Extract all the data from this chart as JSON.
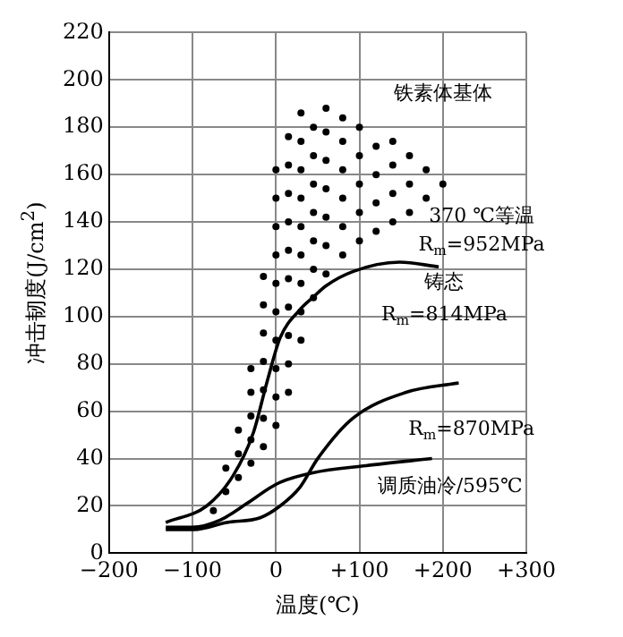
{
  "chart_data": {
    "type": "line",
    "xlabel": "温度(℃)",
    "ylabel": "冲击韧度(J/cm$^{2}$)",
    "xlim": [
      -200,
      300
    ],
    "ylim": [
      0,
      220
    ],
    "xticks": [
      {
        "value": -200,
        "label": "−200"
      },
      {
        "value": -100,
        "label": "−100"
      },
      0,
      {
        "value": 100,
        "label": "+100"
      },
      {
        "value": 200,
        "label": "+200"
      },
      {
        "value": 300,
        "label": "+300"
      }
    ],
    "yticks": [
      0,
      20,
      40,
      60,
      80,
      100,
      120,
      140,
      160,
      180,
      200,
      220
    ],
    "grid": true,
    "series": [
      {
        "name": "铁素体基体",
        "type": "scatter",
        "color": "#000000",
        "x": [
          -75,
          -60,
          -60,
          -45,
          -45,
          -45,
          -30,
          -30,
          -30,
          -30,
          -30,
          -15,
          -15,
          -15,
          -15,
          -15,
          -15,
          -15,
          0,
          0,
          0,
          0,
          0,
          0,
          0,
          0,
          0,
          0,
          15,
          15,
          15,
          15,
          15,
          15,
          15,
          15,
          15,
          15,
          30,
          30,
          30,
          30,
          30,
          30,
          30,
          30,
          30,
          45,
          45,
          45,
          45,
          45,
          45,
          45,
          60,
          60,
          60,
          60,
          60,
          60,
          60,
          80,
          80,
          80,
          80,
          80,
          80,
          100,
          100,
          100,
          100,
          100,
          120,
          120,
          120,
          120,
          140,
          140,
          140,
          140,
          160,
          160,
          160,
          180,
          180,
          200
        ],
        "values": [
          18,
          26,
          36,
          32,
          42,
          52,
          38,
          48,
          58,
          68,
          78,
          45,
          57,
          69,
          81,
          93,
          105,
          117,
          54,
          66,
          78,
          90,
          102,
          114,
          126,
          138,
          150,
          162,
          68,
          80,
          92,
          104,
          116,
          128,
          140,
          152,
          164,
          176,
          90,
          102,
          114,
          126,
          138,
          150,
          162,
          174,
          186,
          108,
          120,
          132,
          144,
          156,
          168,
          180,
          118,
          130,
          142,
          154,
          166,
          178,
          188,
          126,
          138,
          150,
          162,
          174,
          184,
          132,
          144,
          156,
          168,
          180,
          136,
          148,
          160,
          172,
          140,
          152,
          164,
          174,
          144,
          156,
          168,
          150,
          162,
          156
        ]
      },
      {
        "name": "370 ℃等温\nR$_{m}$=952MPa",
        "color": "#000000",
        "x": [
          -132,
          -83,
          -51,
          -27,
          -11,
          5,
          29,
          44,
          60,
          92,
          148,
          195
        ],
        "values": [
          13,
          20,
          33,
          51,
          72,
          91,
          103,
          108,
          113,
          119,
          123,
          121
        ]
      },
      {
        "name": "铸态\nR$_{m}$=814MPa",
        "color": "#000000",
        "x": [
          -132,
          -98,
          -59,
          -19,
          5,
          29,
          50,
          92,
          156,
          219
        ],
        "values": [
          10,
          10,
          13,
          15,
          20,
          28,
          40,
          57,
          68,
          72
        ]
      },
      {
        "name": "R$_{m}$=870MPa\n调质油冷/595℃",
        "color": "#000000",
        "x": [
          -132,
          -100,
          -67,
          -35,
          -10,
          5,
          44,
          108,
          187
        ],
        "values": [
          11,
          11,
          14,
          21,
          27,
          30,
          34,
          37,
          40
        ]
      }
    ]
  }
}
